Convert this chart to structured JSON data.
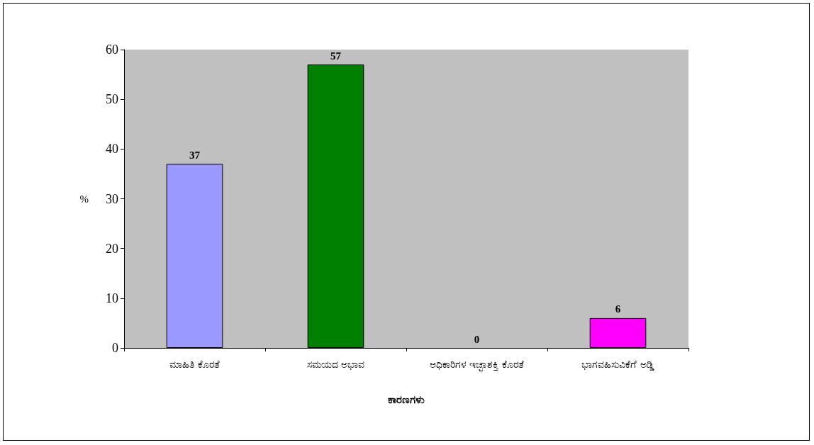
{
  "chart_data": {
    "type": "bar",
    "xlabel": "ಕಾರಣಗಳು",
    "ylabel": "%",
    "categories": [
      "ಮಾಹಿತಿ ಕೊರತೆ",
      "ಸಮಯದ ಅಭಾವ",
      "ಅಧಿಕಾರಿಗಳ ಇಚ್ಛಾಶಕ್ತಿ ಕೊರತೆ",
      "ಭಾಗವಹಿಸುವಿಕೆಗೆ ಅಡ್ಡಿ"
    ],
    "values": [
      37,
      57,
      0,
      6
    ],
    "colors": [
      "#9999ff",
      "#008000",
      "#cc0000",
      "#ff00ff"
    ],
    "ylim": [
      0,
      60
    ],
    "yticks": [
      0,
      10,
      20,
      30,
      40,
      50,
      60
    ],
    "grid": false,
    "data_labels": true
  }
}
